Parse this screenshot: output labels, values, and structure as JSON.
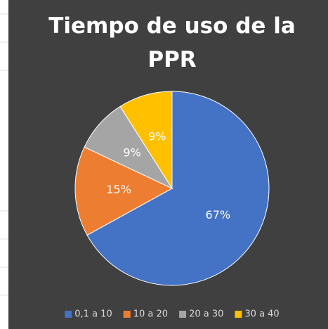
{
  "chart_data": {
    "type": "pie",
    "title": "Tiempo de uso de la PPR",
    "categories": [
      "0,1 a 10",
      "10 a 20",
      "20 a 30",
      "30 a 40"
    ],
    "values": [
      67,
      15,
      9,
      9
    ],
    "value_labels": [
      "67%",
      "15%",
      "9%",
      "9%"
    ],
    "colors": [
      "#4472c4",
      "#ed7d31",
      "#a5a5a5",
      "#ffc000"
    ],
    "legend": "bottom"
  }
}
